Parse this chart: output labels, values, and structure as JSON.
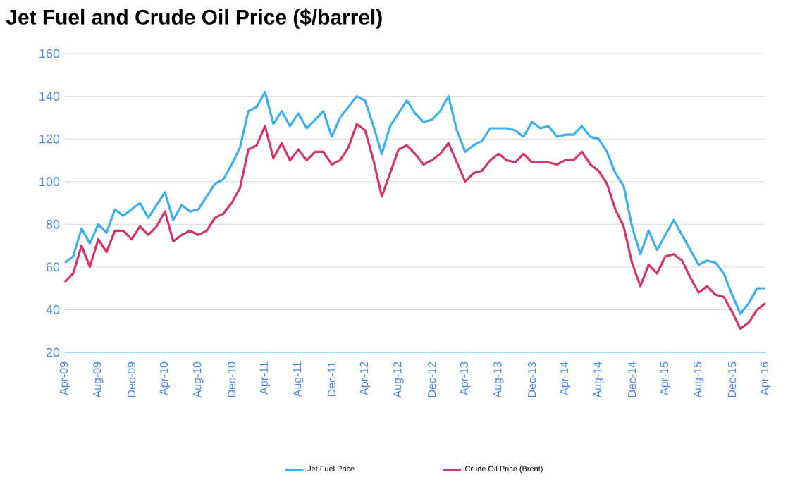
{
  "chart_data": {
    "type": "line",
    "title": "Jet Fuel and Crude Oil Price ($/barrel)",
    "x": [
      "2009-04",
      "2009-05",
      "2009-06",
      "2009-07",
      "2009-08",
      "2009-09",
      "2009-10",
      "2009-11",
      "2009-12",
      "2010-01",
      "2010-02",
      "2010-03",
      "2010-04",
      "2010-05",
      "2010-06",
      "2010-07",
      "2010-08",
      "2010-09",
      "2010-10",
      "2010-11",
      "2010-12",
      "2011-01",
      "2011-02",
      "2011-03",
      "2011-04",
      "2011-05",
      "2011-06",
      "2011-07",
      "2011-08",
      "2011-09",
      "2011-10",
      "2011-11",
      "2011-12",
      "2012-01",
      "2012-02",
      "2012-03",
      "2012-04",
      "2012-05",
      "2012-06",
      "2012-07",
      "2012-08",
      "2012-09",
      "2012-10",
      "2012-11",
      "2012-12",
      "2013-01",
      "2013-02",
      "2013-03",
      "2013-04",
      "2013-05",
      "2013-06",
      "2013-07",
      "2013-08",
      "2013-09",
      "2013-10",
      "2013-11",
      "2013-12",
      "2014-01",
      "2014-02",
      "2014-03",
      "2014-04",
      "2014-05",
      "2014-06",
      "2014-07",
      "2014-08",
      "2014-09",
      "2014-10",
      "2014-11",
      "2014-12",
      "2015-01",
      "2015-02",
      "2015-03",
      "2015-04",
      "2015-05",
      "2015-06",
      "2015-07",
      "2015-08",
      "2015-09",
      "2015-10",
      "2015-11",
      "2015-12",
      "2016-01",
      "2016-02",
      "2016-03",
      "2016-04"
    ],
    "series": [
      {
        "name": "Jet Fuel Price",
        "color": "#3daef0",
        "values": [
          62,
          65,
          78,
          71,
          80,
          76,
          87,
          84,
          87,
          90,
          83,
          89,
          95,
          82,
          89,
          86,
          87,
          93,
          99,
          101,
          108,
          116,
          133,
          135,
          142,
          127,
          133,
          126,
          132,
          125,
          129,
          133,
          121,
          130,
          135,
          140,
          138,
          126,
          113,
          126,
          132,
          138,
          132,
          128,
          129,
          133,
          140,
          124,
          114,
          117,
          119,
          125,
          125,
          125,
          124,
          121,
          128,
          125,
          126,
          121,
          122,
          122,
          126,
          121,
          120,
          114,
          104,
          98,
          79,
          66,
          77,
          68,
          75,
          82,
          75,
          68,
          61,
          63,
          62,
          57,
          47,
          38,
          43,
          50,
          50
        ]
      },
      {
        "name": "Crude Oil Price (Brent)",
        "color": "#d6336c",
        "values": [
          53,
          57,
          70,
          60,
          73,
          67,
          77,
          77,
          73,
          79,
          75,
          79,
          86,
          72,
          75,
          77,
          75,
          77,
          83,
          85,
          90,
          97,
          115,
          117,
          126,
          111,
          118,
          110,
          115,
          110,
          114,
          114,
          108,
          110,
          116,
          127,
          124,
          110,
          93,
          104,
          115,
          117,
          113,
          108,
          110,
          113,
          118,
          109,
          100,
          104,
          105,
          110,
          113,
          110,
          109,
          113,
          109,
          109,
          109,
          108,
          110,
          110,
          114,
          108,
          105,
          99,
          87,
          79,
          62,
          51,
          61,
          57,
          65,
          66,
          63,
          55,
          48,
          51,
          47,
          46,
          39,
          31,
          34,
          40,
          43
        ]
      }
    ],
    "xlim": [
      "2009-04",
      "2016-04"
    ],
    "xticks": [
      {
        "value": "2009-04",
        "label": "Apr-09"
      },
      {
        "value": "2009-08",
        "label": "Aug-09"
      },
      {
        "value": "2009-12",
        "label": "Dec-09"
      },
      {
        "value": "2010-04",
        "label": "Apr-10"
      },
      {
        "value": "2010-08",
        "label": "Aug-10"
      },
      {
        "value": "2010-12",
        "label": "Dec-10"
      },
      {
        "value": "2011-04",
        "label": "Apr-11"
      },
      {
        "value": "2011-08",
        "label": "Aug-11"
      },
      {
        "value": "2011-12",
        "label": "Dec-11"
      },
      {
        "value": "2012-04",
        "label": "Apr-12"
      },
      {
        "value": "2012-08",
        "label": "Aug-12"
      },
      {
        "value": "2012-12",
        "label": "Dec-12"
      },
      {
        "value": "2013-04",
        "label": "Apr-13"
      },
      {
        "value": "2013-08",
        "label": "Aug-13"
      },
      {
        "value": "2013-12",
        "label": "Dec-13"
      },
      {
        "value": "2014-04",
        "label": "Apr-14"
      },
      {
        "value": "2014-08",
        "label": "Aug-14"
      },
      {
        "value": "2014-12",
        "label": "Dec-14"
      },
      {
        "value": "2015-04",
        "label": "Apr-15"
      },
      {
        "value": "2015-08",
        "label": "Aug-15"
      },
      {
        "value": "2015-12",
        "label": "Dec-15"
      },
      {
        "value": "2016-04",
        "label": "Apr-16"
      }
    ],
    "ylim": [
      20,
      160
    ],
    "yticks": [
      20,
      40,
      60,
      80,
      100,
      120,
      140,
      160
    ],
    "grid": "y",
    "legend": "bottom",
    "marker": "none",
    "line_style": "solid"
  }
}
